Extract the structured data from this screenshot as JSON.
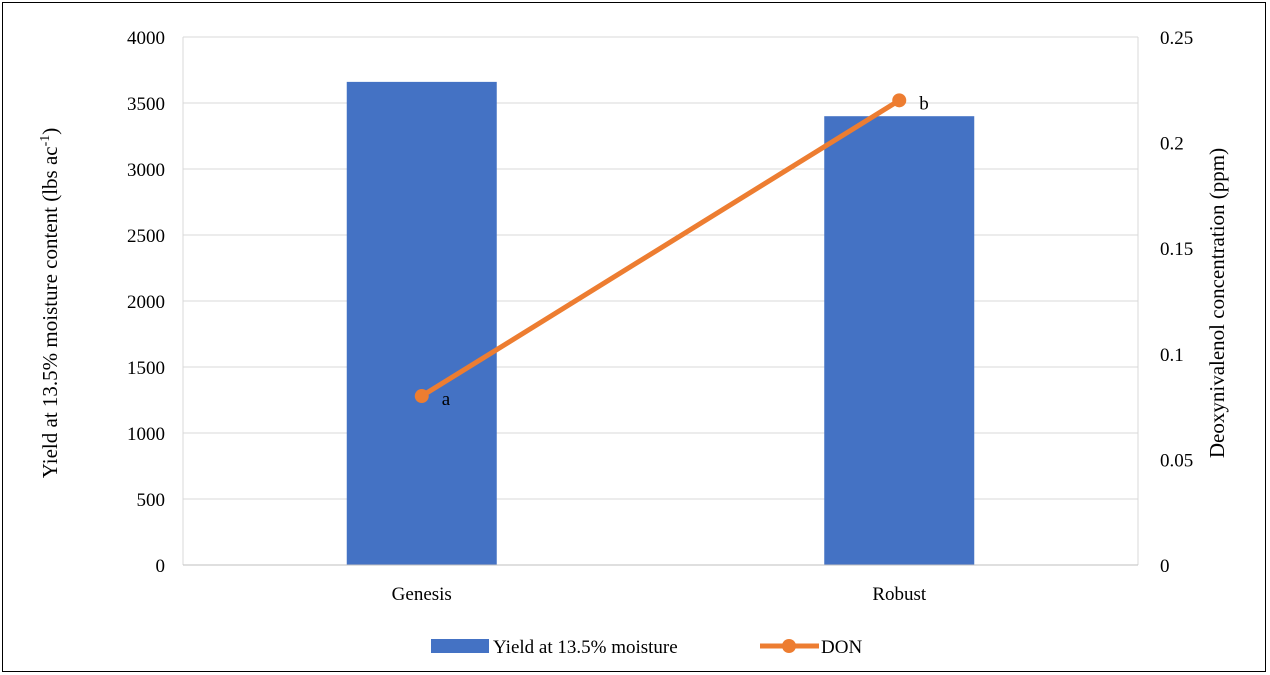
{
  "chart_data": {
    "type": "bar",
    "categories": [
      "Genesis",
      "Robust"
    ],
    "series": [
      {
        "name": "Yield at 13.5% moisture",
        "type": "bar",
        "axis": "left",
        "color": "#4472C4",
        "values": [
          3660,
          3400
        ]
      },
      {
        "name": "DON",
        "type": "line",
        "axis": "right",
        "color": "#ED7D31",
        "values": [
          0.08,
          0.22
        ],
        "point_labels": [
          "a",
          "b"
        ]
      }
    ],
    "ylabel": "Yield at 13.5% moisture content (lbs ac",
    "ylabel_superscript": "-1",
    "ylabel_suffix": ")",
    "y2label": "Deoxynivalenol concentration (ppm)",
    "ylim": [
      0,
      4000
    ],
    "yticks": [
      "0",
      "500",
      "1000",
      "1500",
      "2000",
      "2500",
      "3000",
      "3500",
      "4000"
    ],
    "y2lim": [
      0,
      0.25
    ],
    "y2ticks": [
      "0",
      "0.05",
      "0.1",
      "0.15",
      "0.2",
      "0.25"
    ],
    "grid": true,
    "legend_position": "bottom"
  }
}
